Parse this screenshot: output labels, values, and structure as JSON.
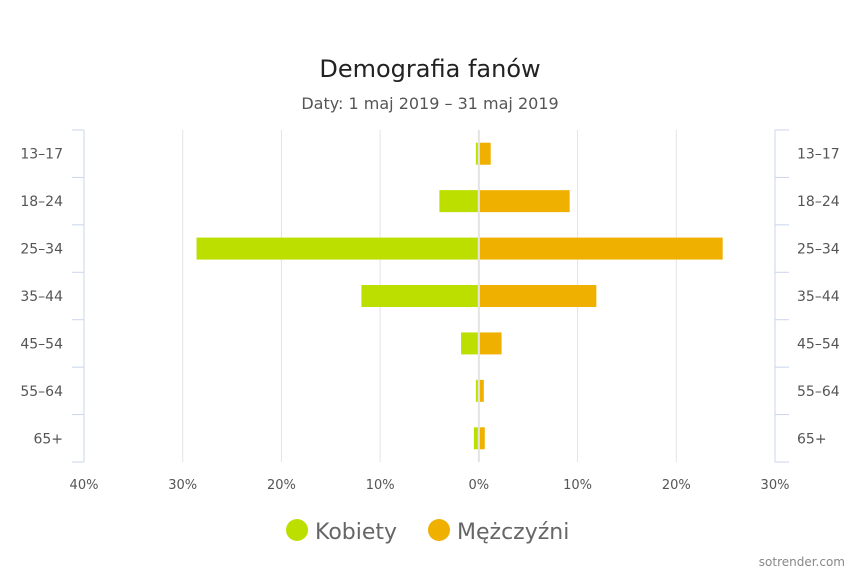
{
  "chart_data": {
    "type": "bar",
    "orientation": "horizontal-pyramid",
    "title": "Demografia fanów",
    "subtitle": "Daty: 1 maj 2019 – 31 maj 2019",
    "categories": [
      "13-17",
      "18-24",
      "25-34",
      "35-44",
      "45-54",
      "55-64",
      "65+"
    ],
    "series": [
      {
        "name": "Kobiety",
        "color": "#bddf00",
        "side": "left",
        "values": [
          0.3,
          4.0,
          28.6,
          11.9,
          1.8,
          0.3,
          0.5
        ]
      },
      {
        "name": "Mężczyźni",
        "color": "#f0b000",
        "side": "right",
        "values": [
          1.2,
          9.2,
          24.7,
          11.9,
          2.3,
          0.5,
          0.6
        ]
      }
    ],
    "xlim": [
      -40,
      30
    ],
    "x_ticks": [
      -40,
      -30,
      -20,
      -10,
      0,
      10,
      20,
      30
    ],
    "x_tick_labels": [
      "40%",
      "30%",
      "20%",
      "10%",
      "0%",
      "10%",
      "20%",
      "30%"
    ],
    "grid": true,
    "legend": "bottom",
    "credit": "sotrender.com"
  }
}
